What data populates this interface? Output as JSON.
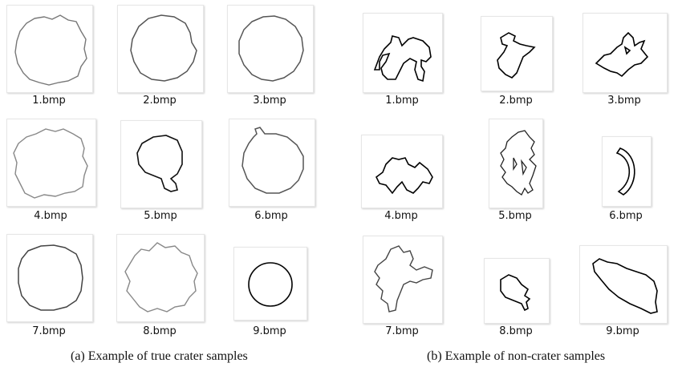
{
  "panel_a": {
    "caption": "(a) Example of  true crater samples",
    "items": [
      {
        "label": "1.bmp",
        "icon": "true-crater-outline-icon"
      },
      {
        "label": "2.bmp",
        "icon": "true-crater-outline-icon"
      },
      {
        "label": "3.bmp",
        "icon": "true-crater-outline-icon"
      },
      {
        "label": "4.bmp",
        "icon": "true-crater-outline-icon"
      },
      {
        "label": "5.bmp",
        "icon": "true-crater-outline-icon"
      },
      {
        "label": "6.bmp",
        "icon": "true-crater-outline-icon"
      },
      {
        "label": "7.bmp",
        "icon": "true-crater-outline-icon"
      },
      {
        "label": "8.bmp",
        "icon": "true-crater-outline-icon"
      },
      {
        "label": "9.bmp",
        "icon": "true-crater-outline-icon"
      }
    ]
  },
  "panel_b": {
    "caption": "(b) Example of non-crater samples",
    "items": [
      {
        "label": "1.bmp",
        "icon": "non-crater-outline-icon"
      },
      {
        "label": "2.bmp",
        "icon": "non-crater-outline-icon"
      },
      {
        "label": "3.bmp",
        "icon": "non-crater-outline-icon"
      },
      {
        "label": "4.bmp",
        "icon": "non-crater-outline-icon"
      },
      {
        "label": "5.bmp",
        "icon": "non-crater-outline-icon"
      },
      {
        "label": "6.bmp",
        "icon": "non-crater-outline-icon"
      },
      {
        "label": "7.bmp",
        "icon": "non-crater-outline-icon"
      },
      {
        "label": "8.bmp",
        "icon": "non-crater-outline-icon"
      },
      {
        "label": "9.bmp",
        "icon": "non-crater-outline-icon"
      }
    ]
  }
}
